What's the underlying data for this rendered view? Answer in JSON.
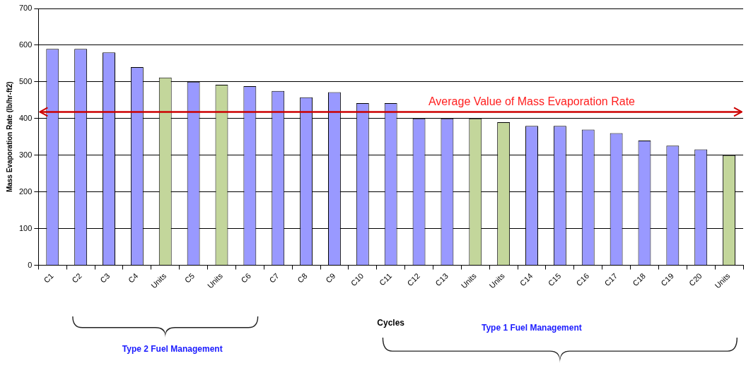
{
  "chart_data": {
    "type": "bar",
    "xlabel": "Cycles",
    "ylabel": "Mass Evaporation Rate (lb/hr-ft2)",
    "categories": [
      "C1",
      "C2",
      "C3",
      "C4",
      "Units",
      "C5",
      "Units",
      "C6",
      "C7",
      "C8",
      "C9",
      "C10",
      "C11",
      "C12",
      "C13",
      "Units",
      "Units",
      "C14",
      "C15",
      "C16",
      "C17",
      "C18",
      "C19",
      "C20",
      "Units"
    ],
    "values": [
      590,
      590,
      580,
      540,
      512,
      500,
      492,
      488,
      475,
      458,
      472,
      442,
      442,
      400,
      400,
      400,
      390,
      380,
      380,
      370,
      360,
      340,
      326,
      316,
      300
    ],
    "colors": [
      "#9999ff",
      "#9999ff",
      "#9999ff",
      "#9999ff",
      "#c3d69b",
      "#9999ff",
      "#c3d69b",
      "#9999ff",
      "#9999ff",
      "#9999ff",
      "#9999ff",
      "#9999ff",
      "#9999ff",
      "#9999ff",
      "#9999ff",
      "#c3d69b",
      "#c3d69b",
      "#9999ff",
      "#9999ff",
      "#9999ff",
      "#9999ff",
      "#9999ff",
      "#9999ff",
      "#9999ff",
      "#c3d69b"
    ],
    "ylim": [
      0,
      700
    ],
    "yticks": [
      0,
      100,
      200,
      300,
      400,
      500,
      600,
      700
    ],
    "grid": "y",
    "legend": false,
    "ref_lines": [
      {
        "axis": "y",
        "value": 418,
        "label": "Average Value of Mass Evaporation Rate",
        "color": "#cc0000"
      }
    ],
    "annotations": [
      "Type 2 Fuel Management",
      "Type 1 Fuel Management"
    ]
  }
}
